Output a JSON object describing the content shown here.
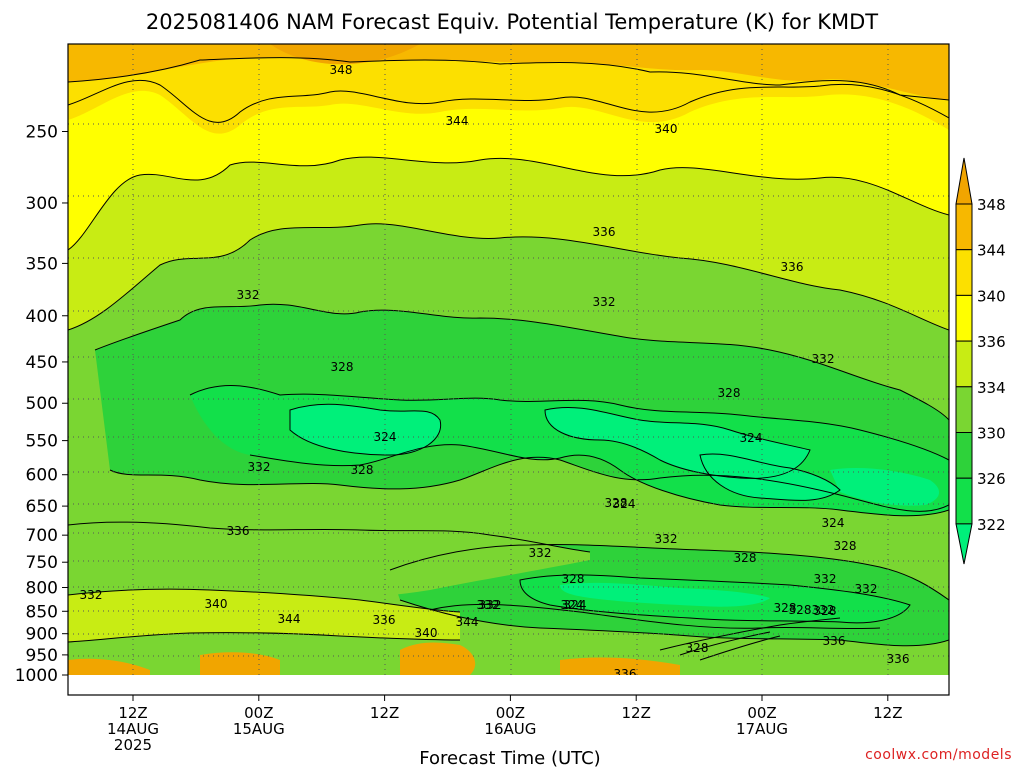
{
  "chart_data": {
    "type": "heatmap",
    "title": "2025081406 NAM Forecast Equiv. Potential Temperature (K) for KMDT",
    "xlabel": "Forecast Time (UTC)",
    "ylabel": "",
    "credit": "coolwx.com/models",
    "y_axis": {
      "scale": "log",
      "unit": "hPa",
      "range": [
        1000,
        200
      ],
      "ticks": [
        250,
        300,
        350,
        400,
        450,
        500,
        550,
        600,
        650,
        700,
        750,
        800,
        850,
        900,
        950,
        1000
      ]
    },
    "x_axis": {
      "unit": "forecast time (UTC)",
      "ticks": [
        {
          "line1": "12Z",
          "line2": "14AUG",
          "line3": "2025"
        },
        {
          "line1": "00Z",
          "line2": "15AUG",
          "line3": ""
        },
        {
          "line1": "12Z",
          "line2": "",
          "line3": ""
        },
        {
          "line1": "00Z",
          "line2": "16AUG",
          "line3": ""
        },
        {
          "line1": "12Z",
          "line2": "",
          "line3": ""
        },
        {
          "line1": "00Z",
          "line2": "17AUG",
          "line3": ""
        },
        {
          "line1": "12Z",
          "line2": "",
          "line3": ""
        }
      ]
    },
    "colorbar": {
      "levels": [
        322,
        326,
        330,
        334,
        336,
        340,
        344,
        348
      ],
      "labels": [
        "348",
        "344",
        "340",
        "336",
        "334",
        "330",
        "326",
        "322"
      ],
      "colors": [
        "#00f07a",
        "#12e04a",
        "#2ed23a",
        "#7ad632",
        "#c8ec14",
        "#ffff00",
        "#fce000",
        "#f7b800",
        "#f1a500"
      ]
    },
    "contour_labels": [
      "348",
      "344",
      "340",
      "336",
      "336",
      "332",
      "332",
      "332",
      "332",
      "328",
      "328",
      "328",
      "328",
      "328",
      "324",
      "324",
      "324",
      "324",
      "324",
      "332",
      "336",
      "340",
      "344",
      "336",
      "340",
      "344",
      "332",
      "328",
      "332",
      "328",
      "332",
      "336",
      "336",
      "328",
      "328",
      "332",
      "332",
      "328",
      "332",
      "336",
      "328",
      "324",
      "332"
    ],
    "field_summary": [
      {
        "pressure": 200,
        "theta_e": 348
      },
      {
        "pressure": 250,
        "theta_e": 344
      },
      {
        "pressure": 300,
        "theta_e": 340
      },
      {
        "pressure": 350,
        "theta_e": 336
      },
      {
        "pressure": 400,
        "theta_e": 332
      },
      {
        "pressure": 500,
        "theta_e": 328
      },
      {
        "pressure": 550,
        "theta_e": 325
      },
      {
        "pressure": 650,
        "theta_e": 328
      },
      {
        "pressure": 750,
        "theta_e": 336
      },
      {
        "pressure": 800,
        "theta_e": 330
      },
      {
        "pressure": 900,
        "theta_e": 340
      },
      {
        "pressure": 975,
        "theta_e": 346
      }
    ],
    "grid": true,
    "ground_color": "#a0522d"
  }
}
